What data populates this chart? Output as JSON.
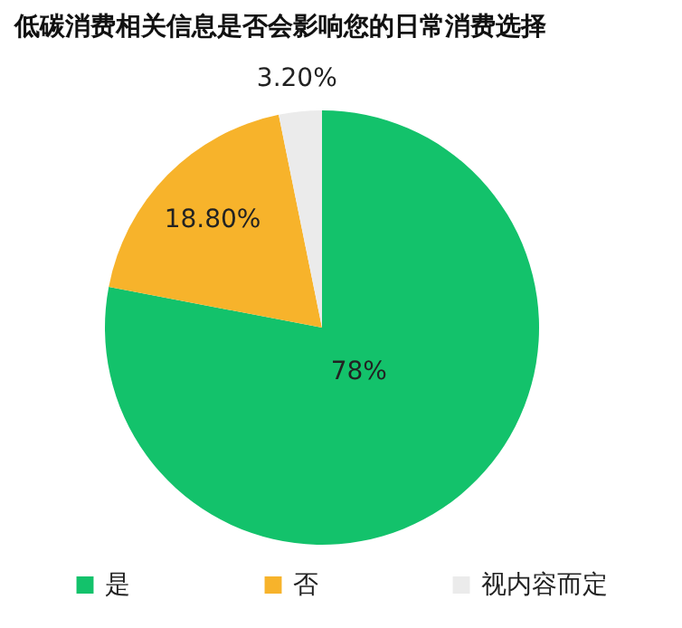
{
  "chart_data": {
    "type": "pie",
    "title": "低碳消费相关信息是否会影响您的日常消费选择",
    "categories": [
      "是",
      "否",
      "视内容而定"
    ],
    "values": [
      78,
      18.8,
      3.2
    ],
    "value_labels": [
      "78%",
      "18.80%",
      "3.20%"
    ],
    "colors": [
      "#13c26b",
      "#f7b32b",
      "#ebebeb"
    ],
    "legend": "bottom"
  }
}
